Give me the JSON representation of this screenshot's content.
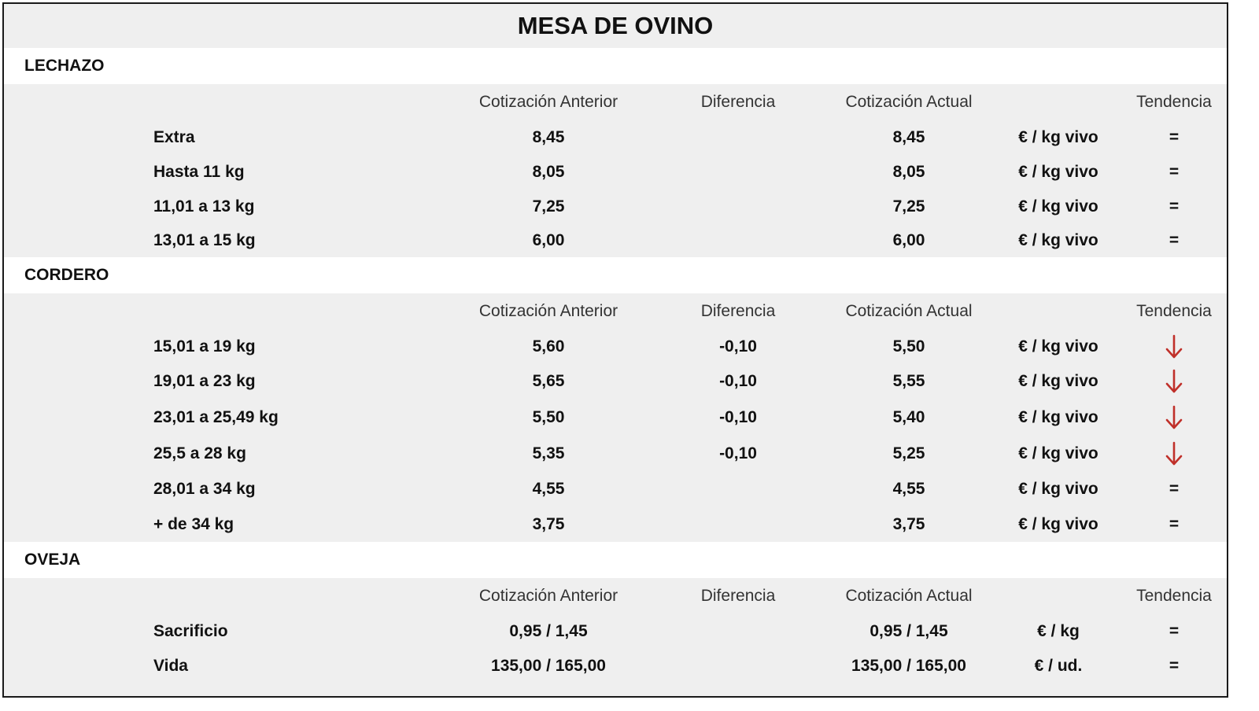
{
  "title": "MESA DE OVINO",
  "columns": {
    "prev": "Cotización Anterior",
    "diff": "Diferencia",
    "curr": "Cotización Actual",
    "trend": "Tendencia"
  },
  "colors": {
    "down_arrow": "#c0302a",
    "panel_bg": "#efefef",
    "section_bg": "#ffffff"
  },
  "sections": [
    {
      "name": "LECHAZO",
      "rows": [
        {
          "label": "Extra",
          "prev": "8,45",
          "diff": "",
          "curr": "8,45",
          "unit": "€ / kg vivo",
          "trend": "="
        },
        {
          "label": "Hasta 11 kg",
          "prev": "8,05",
          "diff": "",
          "curr": "8,05",
          "unit": "€ / kg vivo",
          "trend": "="
        },
        {
          "label": "11,01 a 13 kg",
          "prev": "7,25",
          "diff": "",
          "curr": "7,25",
          "unit": "€ / kg vivo",
          "trend": "="
        },
        {
          "label": "13,01 a 15 kg",
          "prev": "6,00",
          "diff": "",
          "curr": "6,00",
          "unit": "€ / kg vivo",
          "trend": "="
        }
      ]
    },
    {
      "name": "CORDERO",
      "rows": [
        {
          "label": "15,01 a 19 kg",
          "prev": "5,60",
          "diff": "-0,10",
          "curr": "5,50",
          "unit": "€ / kg vivo",
          "trend": "down-arrow-icon"
        },
        {
          "label": "19,01 a 23 kg",
          "prev": "5,65",
          "diff": "-0,10",
          "curr": "5,55",
          "unit": "€ / kg vivo",
          "trend": "down-arrow-icon"
        },
        {
          "label": "23,01 a 25,49 kg",
          "prev": "5,50",
          "diff": "-0,10",
          "curr": "5,40",
          "unit": "€ / kg vivo",
          "trend": "down-arrow-icon"
        },
        {
          "label": "25,5 a 28 kg",
          "prev": "5,35",
          "diff": "-0,10",
          "curr": "5,25",
          "unit": "€ / kg vivo",
          "trend": "down-arrow-icon"
        },
        {
          "label": "28,01 a 34 kg",
          "prev": "4,55",
          "diff": "",
          "curr": "4,55",
          "unit": "€ / kg vivo",
          "trend": "="
        },
        {
          "label": "+ de 34 kg",
          "prev": "3,75",
          "diff": "",
          "curr": "3,75",
          "unit": "€ / kg vivo",
          "trend": "="
        }
      ]
    },
    {
      "name": "OVEJA",
      "rows": [
        {
          "label": "Sacrificio",
          "prev": "0,95 / 1,45",
          "diff": "",
          "curr": "0,95 / 1,45",
          "unit": "€ / kg",
          "trend": "="
        },
        {
          "label": "Vida",
          "prev": "135,00 / 165,00",
          "diff": "",
          "curr": "135,00 / 165,00",
          "unit": "€ / ud.",
          "trend": "="
        }
      ]
    }
  ]
}
